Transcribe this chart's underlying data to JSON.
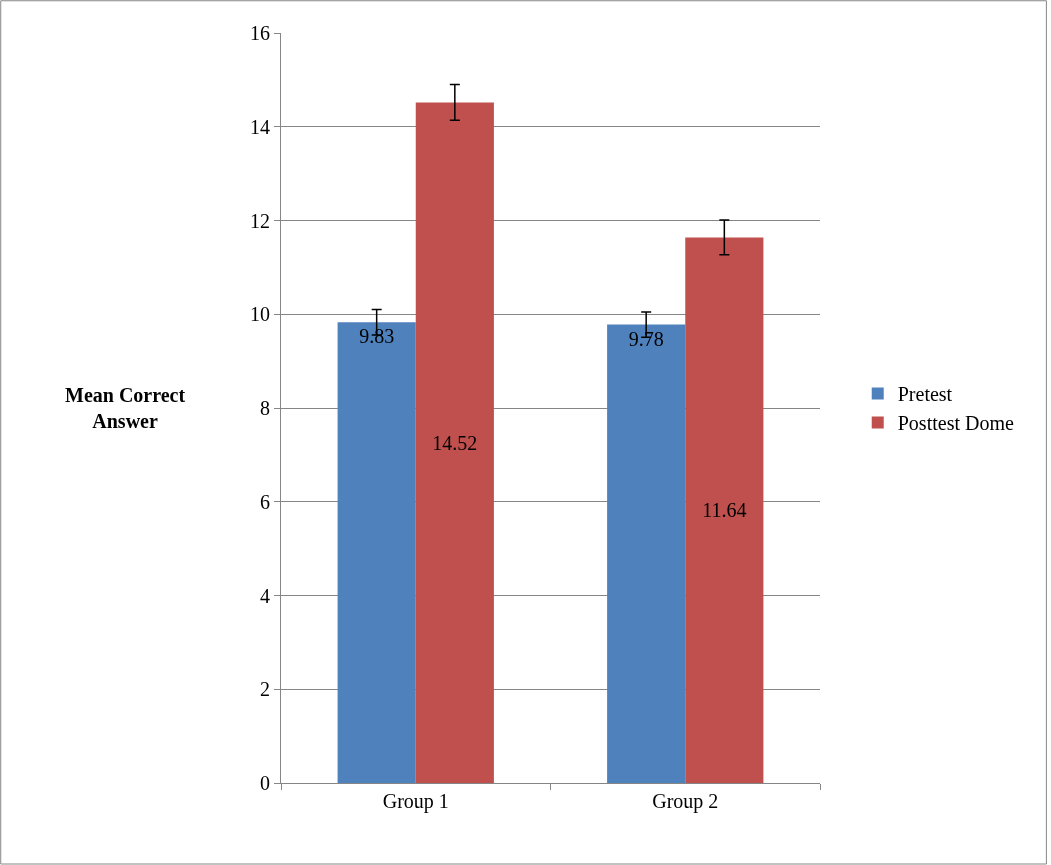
{
  "chart_data": {
    "type": "bar",
    "ylabel": "Mean Correct Answer",
    "categories": [
      "Group 1",
      "Group 2"
    ],
    "series": [
      {
        "name": "Pretest",
        "color": "#4f81bd",
        "values": [
          9.83,
          9.78
        ],
        "errors": [
          0.27,
          0.27
        ]
      },
      {
        "name": "Posttest Dome",
        "color": "#c0504d",
        "values": [
          14.52,
          11.64
        ],
        "errors": [
          0.38,
          0.37
        ]
      }
    ],
    "ylim": [
      0,
      16
    ],
    "yticks": [
      0,
      2,
      4,
      6,
      8,
      10,
      12,
      14,
      16
    ],
    "grid": "y",
    "legend": "right",
    "data_labels": true
  }
}
